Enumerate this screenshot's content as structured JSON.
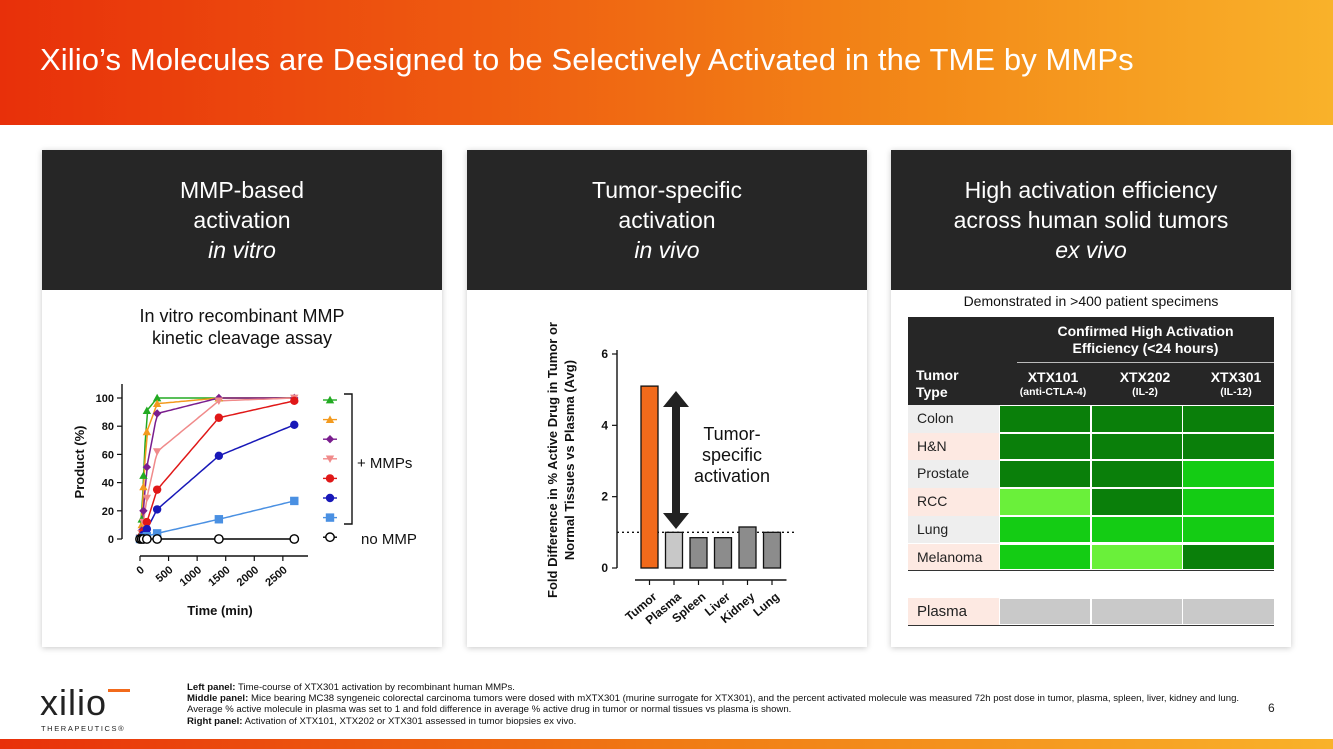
{
  "slide": {
    "title": "Xilio’s Molecules are Designed to be Selectively Activated in the TME by MMPs",
    "page_number": "6"
  },
  "colors": {
    "header_start": "#e8300a",
    "header_end": "#f9b22a",
    "panel_header": "#262626",
    "dark_green": "#0a7f0a",
    "mid_green": "#14cc14",
    "light_green": "#6af03a",
    "plasma_gray": "#c9c9c9"
  },
  "left_panel": {
    "head_line1": "MMP-based",
    "head_line2": "activation",
    "head_line3": "in vitro",
    "subtitle_line1": "In vitro recombinant MMP",
    "subtitle_line2": "kinetic cleavage assay",
    "legend_mmps": "+ MMPs",
    "legend_no_mmp": "no MMP"
  },
  "middle_panel": {
    "head_line1": "Tumor-specific",
    "head_line2": "activation",
    "head_line3": "in vivo",
    "annotation_line1": "Tumor-",
    "annotation_line2": "specific",
    "annotation_line3": "activation"
  },
  "right_panel": {
    "head_line1": "High activation efficiency",
    "head_line2": "across human solid tumors",
    "head_line3": "ex vivo",
    "demonstrated": "Demonstrated in >400 patient specimens",
    "table_header_line1": "Confirmed High Activation",
    "table_header_line2": "Efficiency (<24 hours)",
    "tumor_type_line1": "Tumor",
    "tumor_type_line2": "Type",
    "columns": [
      {
        "name": "XTX101",
        "sub": "(anti-CTLA-4)"
      },
      {
        "name": "XTX202",
        "sub": "(IL-2)"
      },
      {
        "name": "XTX301",
        "sub": "(IL-12)"
      }
    ],
    "rows": [
      {
        "label": "Colon",
        "levels": [
          "dark",
          "dark",
          "dark"
        ]
      },
      {
        "label": "H&N",
        "levels": [
          "dark",
          "dark",
          "dark"
        ]
      },
      {
        "label": "Prostate",
        "levels": [
          "dark",
          "dark",
          "mid"
        ]
      },
      {
        "label": "RCC",
        "levels": [
          "light",
          "dark",
          "mid"
        ]
      },
      {
        "label": "Lung",
        "levels": [
          "mid",
          "mid",
          "mid"
        ]
      },
      {
        "label": "Melanoma",
        "levels": [
          "mid",
          "light",
          "dark"
        ]
      }
    ],
    "plasma_label": "Plasma"
  },
  "chart_data": [
    {
      "type": "line",
      "title": "In vitro recombinant MMP kinetic cleavage assay",
      "xlabel": "Time (min)",
      "ylabel": "Product (%)",
      "xlim": [
        0,
        2800
      ],
      "ylim": [
        0,
        100
      ],
      "x_ticks": [
        "0",
        "500",
        "1000",
        "1500",
        "2000",
        "2500"
      ],
      "y_ticks": [
        "0",
        "20",
        "40",
        "60",
        "80",
        "100"
      ],
      "series": [
        {
          "name": "MMP (green triangle)",
          "color": "#22aa22",
          "marker": "triangle",
          "x": [
            0,
            30,
            60,
            120,
            300,
            1380,
            2700
          ],
          "values": [
            3,
            14,
            45,
            91,
            100,
            100,
            100
          ]
        },
        {
          "name": "MMP (orange triangle)",
          "color": "#f39a1e",
          "marker": "triangle",
          "x": [
            0,
            30,
            60,
            120,
            300,
            1380,
            2700
          ],
          "values": [
            2,
            10,
            37,
            76,
            96,
            100,
            100
          ]
        },
        {
          "name": "MMP (purple diamond)",
          "color": "#7a1e8e",
          "marker": "diamond",
          "x": [
            0,
            30,
            60,
            120,
            300,
            1380,
            2700
          ],
          "values": [
            1,
            6,
            20,
            51,
            89,
            100,
            100
          ]
        },
        {
          "name": "MMP (pink triangle)",
          "color": "#f08a8a",
          "marker": "triangle-down",
          "x": [
            0,
            30,
            60,
            120,
            300,
            1380,
            2700
          ],
          "values": [
            1,
            4,
            12,
            29,
            62,
            98,
            100
          ]
        },
        {
          "name": "MMP (red circle)",
          "color": "#e01818",
          "marker": "circle",
          "x": [
            0,
            30,
            60,
            120,
            300,
            1380,
            2700
          ],
          "values": [
            0,
            2,
            5,
            12,
            35,
            86,
            98
          ]
        },
        {
          "name": "MMP (blue circle)",
          "color": "#1818b8",
          "marker": "circle",
          "x": [
            0,
            30,
            60,
            120,
            300,
            1380,
            2700
          ],
          "values": [
            0,
            1,
            3,
            7,
            21,
            59,
            81
          ]
        },
        {
          "name": "MMP (light blue square)",
          "color": "#4a90e2",
          "marker": "square",
          "x": [
            0,
            30,
            60,
            120,
            300,
            1380,
            2700
          ],
          "values": [
            0,
            0,
            1,
            2,
            4,
            14,
            27
          ]
        },
        {
          "name": "no MMP",
          "color": "#000000",
          "marker": "open-circle",
          "x": [
            0,
            30,
            60,
            120,
            300,
            1380,
            2700
          ],
          "values": [
            0,
            0,
            0,
            0,
            0,
            0,
            0
          ]
        }
      ]
    },
    {
      "type": "bar",
      "ylabel_line1": "Fold Difference in % Active Drug in Tumor or",
      "ylabel_line2": "Normal Tissues vs Plasma (Avg)",
      "categories": [
        "Tumor",
        "Plasma",
        "Spleen",
        "Liver",
        "Kidney",
        "Lung"
      ],
      "values": [
        5.1,
        1.0,
        0.85,
        0.85,
        1.15,
        1.0
      ],
      "ylim": [
        0,
        6
      ],
      "y_ticks": [
        "0",
        "2",
        "4",
        "6"
      ],
      "reference_line": 1,
      "bar_colors": [
        "#f26a1b",
        "#c8c8c8",
        "#8c8c8c",
        "#8c8c8c",
        "#8c8c8c",
        "#8c8c8c"
      ]
    }
  ],
  "footnote": {
    "left_label": "Left panel:",
    "left_text": " Time-course of XTX301 activation by recombinant human MMPs.",
    "middle_label": "Middle panel:",
    "middle_text": " Mice bearing MC38 syngeneic colorectal carcinoma tumors were dosed with mXTX301 (murine surrogate for XTX301), and the percent activated molecule was measured 72h post dose in tumor, plasma, spleen, liver, kidney and lung. Average % active molecule in plasma was set to 1 and fold difference in average % active drug in tumor or normal tissues vs plasma is shown.",
    "right_label": "Right panel:",
    "right_text": " Activation of XTX101, XTX202 or XTX301 assessed in tumor biopsies ex vivo."
  },
  "logo": {
    "wordmark": "xilio",
    "tagline": "THERAPEUTICS®"
  }
}
